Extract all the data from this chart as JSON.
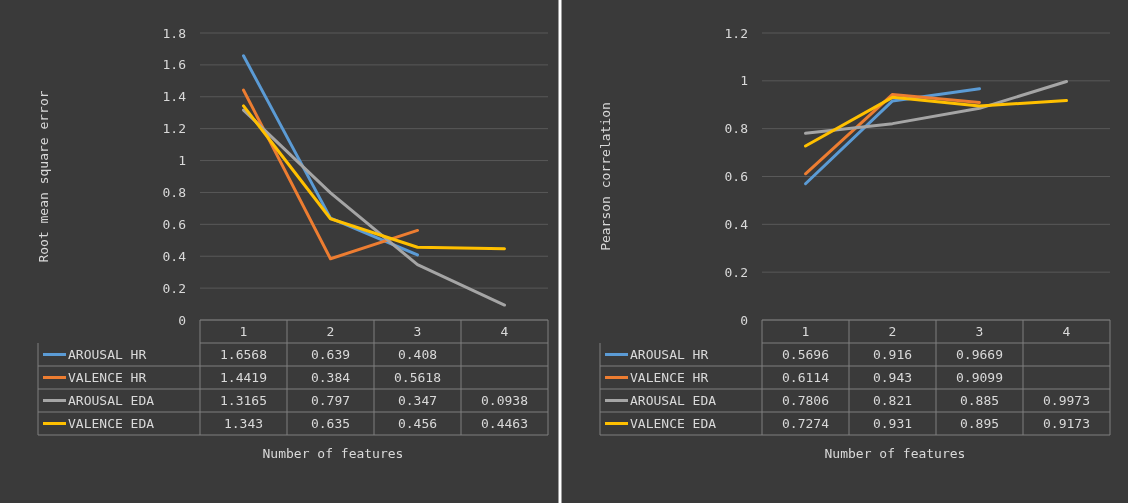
{
  "chart_data": [
    {
      "type": "line",
      "categories": [
        "1",
        "2",
        "3",
        "4"
      ],
      "ylabel": "Root mean square error",
      "xlabel": "Number of features",
      "ylim": [
        0,
        1.8
      ],
      "yticks": [
        0,
        0.2,
        0.4,
        0.6,
        0.8,
        1,
        1.2,
        1.4,
        1.6,
        1.8
      ],
      "grid": "y",
      "legend": "bottom",
      "data_labels": true,
      "marker": "none",
      "line_style": "solid",
      "series": [
        {
          "name": "AROUSAL HR",
          "color": "#5b9bd5",
          "values": [
            1.6568,
            0.639,
            0.408,
            null
          ]
        },
        {
          "name": "VALENCE HR",
          "color": "#ed7d31",
          "values": [
            1.4419,
            0.384,
            0.5618,
            null
          ]
        },
        {
          "name": "AROUSAL EDA",
          "color": "#a5a5a5",
          "values": [
            1.3165,
            0.797,
            0.347,
            0.0938
          ]
        },
        {
          "name": "VALENCE EDA",
          "color": "#ffc000",
          "values": [
            1.343,
            0.635,
            0.456,
            0.4463
          ]
        }
      ]
    },
    {
      "type": "line",
      "categories": [
        "1",
        "2",
        "3",
        "4"
      ],
      "ylabel": "Pearson correlation",
      "xlabel": "Number of features",
      "ylim": [
        0,
        1.2
      ],
      "yticks": [
        0,
        0.2,
        0.4,
        0.6,
        0.8,
        1,
        1.2
      ],
      "grid": "y",
      "legend": "bottom",
      "data_labels": true,
      "marker": "none",
      "line_style": "solid",
      "series": [
        {
          "name": "AROUSAL HR",
          "color": "#5b9bd5",
          "values": [
            0.5696,
            0.916,
            0.9669,
            null
          ]
        },
        {
          "name": "VALENCE HR",
          "color": "#ed7d31",
          "values": [
            0.6114,
            0.943,
            0.9099,
            null
          ]
        },
        {
          "name": "AROUSAL EDA",
          "color": "#a5a5a5",
          "values": [
            0.7806,
            0.821,
            0.885,
            0.9973
          ]
        },
        {
          "name": "VALENCE EDA",
          "color": "#ffc000",
          "values": [
            0.7274,
            0.931,
            0.895,
            0.9173
          ]
        }
      ]
    }
  ]
}
